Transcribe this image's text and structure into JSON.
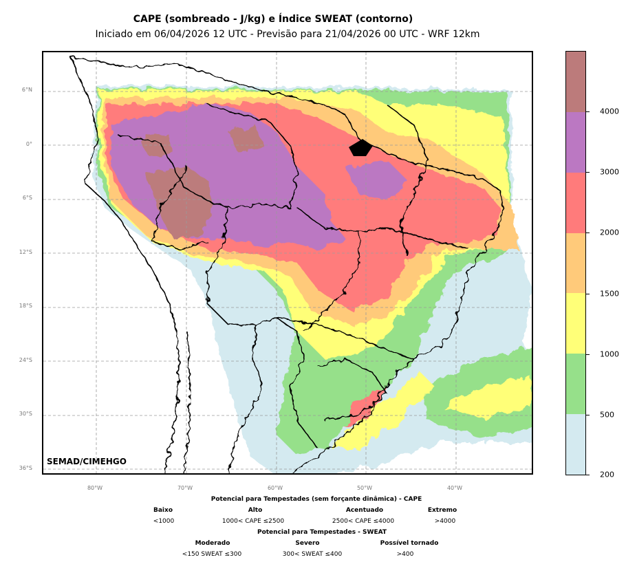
{
  "title": {
    "line1": "CAPE (sombreado - J/kg) e Índice SWEAT (contorno)",
    "line2": "Iniciado em 06/04/2026 12 UTC - Previsão para 21/04/2026 00 UTC - WRF 12km"
  },
  "credit": "SEMAD/CIMEHGO",
  "axes": {
    "lat_labels": [
      "6°N",
      "0°",
      "6°S",
      "12°S",
      "18°S",
      "24°S",
      "30°S",
      "36°S"
    ],
    "lon_labels": [
      "80°W",
      "70°W",
      "60°W",
      "50°W",
      "40°W"
    ]
  },
  "colorbar": {
    "labels": [
      "200",
      "500",
      "1000",
      "1500",
      "2000",
      "3000",
      "4000"
    ],
    "colors": [
      "#d4eaf0",
      "#96e08a",
      "#ffff78",
      "#ffca7a",
      "#ff7b7b",
      "#bb78c2",
      "#bc7b7b"
    ]
  },
  "legend": {
    "cape_title": "Potencial para Tempestades (sem forçante dinâmica) - CAPE",
    "cape_levels": [
      {
        "name": "Baixo",
        "range": "<1000"
      },
      {
        "name": "Alto",
        "range": "1000< CAPE ≤2500"
      },
      {
        "name": "Acentuado",
        "range": "2500< CAPE ≤4000"
      },
      {
        "name": "Extremo",
        "range": ">4000"
      }
    ],
    "sweat_title": "Potencial para Tempestades - SWEAT",
    "sweat_levels": [
      {
        "name": "Moderado",
        "range": "<150 SWEAT ≤300"
      },
      {
        "name": "Severo",
        "range": "300< SWEAT ≤400"
      },
      {
        "name": "Possível tornado",
        "range": ">400"
      }
    ]
  }
}
